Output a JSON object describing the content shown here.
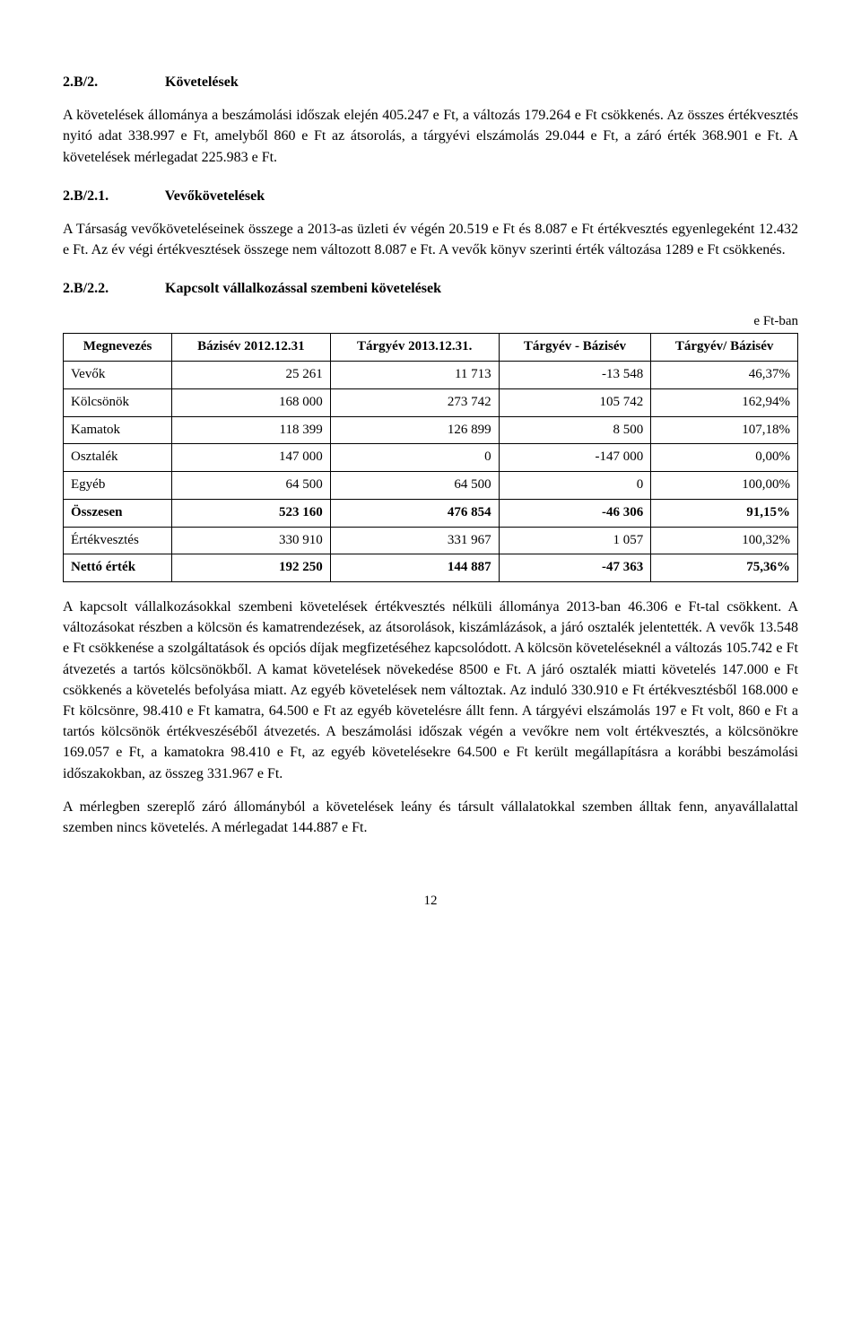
{
  "section1": {
    "num": "2.B/2.",
    "title": "Követelések",
    "para1": "A követelések állománya a beszámolási időszak elején 405.247 e Ft, a változás 179.264 e Ft csökkenés. Az összes értékvesztés nyitó adat 338.997 e Ft, amelyből 860 e Ft az átsorolás, a tárgyévi elszámolás 29.044 e Ft, a záró érték 368.901 e Ft. A követelések mérlegadat 225.983 e Ft."
  },
  "section2": {
    "num": "2.B/2.1.",
    "title": "Vevőkövetelések",
    "para1": "A Társaság vevőköveteléseinek összege a 2013-as üzleti év végén 20.519 e Ft és 8.087 e Ft értékvesztés egyenlegeként 12.432 e Ft. Az év végi értékvesztések összege nem változott 8.087 e Ft. A vevők könyv szerinti érték változása 1289 e Ft csökkenés."
  },
  "section3": {
    "num": "2.B/2.2.",
    "title": "Kapcsolt vállalkozással szembeni követelések",
    "unit": "e Ft-ban"
  },
  "table": {
    "headers": {
      "c0": "Megnevezés",
      "c1": "Bázisév 2012.12.31",
      "c2": "Tárgyév 2013.12.31.",
      "c3": "Tárgyév - Bázisév",
      "c4": "Tárgyév/ Bázisév"
    },
    "rows": [
      {
        "label": "Vevők",
        "c1": "25 261",
        "c2": "11 713",
        "c3": "-13 548",
        "c4": "46,37%",
        "bold": false
      },
      {
        "label": "Kölcsönök",
        "c1": "168 000",
        "c2": "273 742",
        "c3": "105 742",
        "c4": "162,94%",
        "bold": false
      },
      {
        "label": "Kamatok",
        "c1": "118 399",
        "c2": "126 899",
        "c3": "8 500",
        "c4": "107,18%",
        "bold": false
      },
      {
        "label": "Osztalék",
        "c1": "147 000",
        "c2": "0",
        "c3": "-147 000",
        "c4": "0,00%",
        "bold": false
      },
      {
        "label": "Egyéb",
        "c1": "64 500",
        "c2": "64 500",
        "c3": "0",
        "c4": "100,00%",
        "bold": false
      },
      {
        "label": "Összesen",
        "c1": "523 160",
        "c2": "476 854",
        "c3": "-46 306",
        "c4": "91,15%",
        "bold": true
      },
      {
        "label": "Értékvesztés",
        "c1": "330 910",
        "c2": "331 967",
        "c3": "1 057",
        "c4": "100,32%",
        "bold": false
      },
      {
        "label": "Nettó érték",
        "c1": "192 250",
        "c2": "144 887",
        "c3": "-47 363",
        "c4": "75,36%",
        "bold": true
      }
    ]
  },
  "para_after_table": "A kapcsolt vállalkozásokkal szembeni követelések értékvesztés nélküli állománya 2013-ban 46.306 e Ft-tal csökkent. A változásokat részben a kölcsön és kamatrendezések, az átsorolások, kiszámlázások, a járó osztalék jelentették. A vevők 13.548 e Ft csökkenése a szolgáltatások és opciós díjak megfizetéséhez kapcsolódott. A kölcsön követeléseknél a változás 105.742 e Ft átvezetés a tartós kölcsönökből. A kamat követelések növekedése 8500 e Ft. A járó osztalék miatti követelés 147.000 e Ft csökkenés a követelés befolyása miatt. Az egyéb követelések nem változtak. Az induló 330.910 e Ft értékvesztésből 168.000 e Ft kölcsönre, 98.410 e Ft kamatra, 64.500 e Ft az egyéb követelésre állt fenn. A tárgyévi elszámolás 197 e Ft volt, 860 e Ft a tartós kölcsönök értékveszéséből átvezetés. A beszámolási időszak végén a vevőkre nem volt értékvesztés, a kölcsönökre 169.057 e Ft, a kamatokra 98.410 e Ft, az egyéb követelésekre 64.500 e Ft került megállapításra a korábbi beszámolási időszakokban, az összeg 331.967 e Ft.",
  "para_last": "A mérlegben szereplő záró állományból a követelések leány és társult vállalatokkal szemben álltak fenn, anyavállalattal szemben nincs követelés. A mérlegadat 144.887 e Ft.",
  "page_number": "12"
}
